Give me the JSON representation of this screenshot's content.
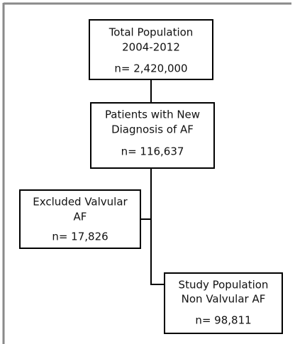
{
  "nodes": [
    {
      "lines": [
        "Total Population",
        "2004-2012"
      ],
      "count": "n= 2,420,000"
    },
    {
      "lines": [
        "Patients with New",
        "Diagnosis of AF"
      ],
      "count": "n= 116,637"
    },
    {
      "lines": [
        "Excluded Valvular",
        "AF"
      ],
      "count": "n= 17,826"
    },
    {
      "lines": [
        "Study Population",
        "Non Valvular AF"
      ],
      "count": "n= 98,811"
    }
  ]
}
